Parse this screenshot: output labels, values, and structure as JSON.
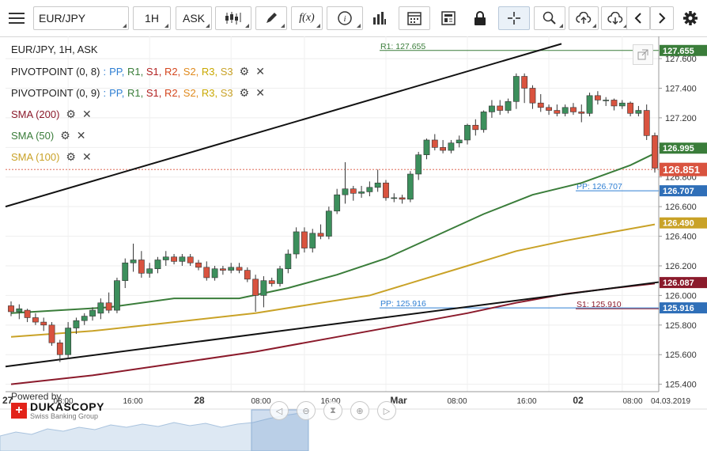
{
  "toolbar": {
    "instrument": "EUR/JPY",
    "period": "1H",
    "side": "ASK",
    "fx_label": "f(x)"
  },
  "legend": {
    "title": "EUR/JPY, 1H, ASK",
    "pivot1": {
      "name": "PIVOTPOINT (0, 8)",
      "items": [
        "PP",
        "R1",
        "S1",
        "R2",
        "S2",
        "R3",
        "S3"
      ]
    },
    "pivot2": {
      "name": "PIVOTPOINT (0, 9)",
      "items": [
        "PP",
        "R1",
        "S1",
        "R2",
        "S2",
        "R3",
        "S3"
      ]
    },
    "sma200": "SMA (200)",
    "sma50": "SMA (50)",
    "sma100": "SMA (100)"
  },
  "colors": {
    "up": "#3c8f5c",
    "down": "#d9533f",
    "sma200": "#8b1a2b",
    "sma50": "#3a7d3a",
    "sma100": "#c9a227",
    "pp": "#2f7fd3",
    "r1": "#3a7d3a",
    "s1": "#b22222",
    "r2": "#d4461e",
    "s2": "#e08a1e",
    "r3": "#c9a800",
    "s3": "#c9a227",
    "accent_blue": "#1f5fa8"
  },
  "icons": [
    "hamburger-icon",
    "instrument-dropdown",
    "period-dropdown",
    "side-dropdown",
    "candles-icon",
    "pencil-icon",
    "function-icon",
    "info-icon",
    "volume-bars-icon",
    "calendar-icon",
    "news-icon",
    "lock-icon",
    "crosshair-icon",
    "zoom-icon",
    "upload-cloud-icon",
    "download-cloud-icon",
    "chevron-left-icon",
    "chevron-right-icon",
    "settings-icon"
  ],
  "branding": {
    "powered_by": "Powered by",
    "name": "DUKASCOPY",
    "sub": "Swiss Banking Group"
  },
  "chart_data": {
    "type": "candlestick",
    "ylim": [
      125.35,
      127.75
    ],
    "y_ticks": [
      "127.600",
      "127.400",
      "127.200",
      "127.000",
      "126.800",
      "126.600",
      "126.400",
      "126.200",
      "126.000",
      "125.800",
      "125.600",
      "125.400"
    ],
    "x_ticks": [
      "27",
      "08:00",
      "16:00",
      "28",
      "08:00",
      "16:00",
      "Mar",
      "08:00",
      "16:00",
      "02",
      "08:00",
      "04.03.2019"
    ],
    "price_labels": [
      {
        "text": "127.655",
        "color": "#3a7d3a"
      },
      {
        "text": "126.995",
        "color": "#3a7d3a"
      },
      {
        "text": "126.851",
        "color": "#d9533f"
      },
      {
        "text": "126.707",
        "color": "#2f6fb8"
      },
      {
        "text": "126.490",
        "color": "#c9a227"
      },
      {
        "text": "126.087",
        "color": "#8b1a2b"
      },
      {
        "text": "125.916",
        "color": "#2f6fb8"
      }
    ],
    "levels": [
      {
        "name": "R1: 127.655",
        "value": 127.655
      },
      {
        "name": "PP: 126.707",
        "value": 126.707
      },
      {
        "name": "PP: 125.916",
        "value": 125.916
      },
      {
        "name": "S1: 125.910",
        "value": 125.91
      }
    ],
    "current_price": 126.851,
    "candles": [
      {
        "o": 125.93,
        "h": 125.96,
        "l": 125.86,
        "c": 125.89
      },
      {
        "o": 125.89,
        "h": 125.94,
        "l": 125.84,
        "c": 125.91
      },
      {
        "o": 125.9,
        "h": 125.91,
        "l": 125.82,
        "c": 125.85
      },
      {
        "o": 125.85,
        "h": 125.88,
        "l": 125.8,
        "c": 125.82
      },
      {
        "o": 125.82,
        "h": 125.85,
        "l": 125.76,
        "c": 125.8
      },
      {
        "o": 125.8,
        "h": 125.82,
        "l": 125.66,
        "c": 125.68
      },
      {
        "o": 125.68,
        "h": 125.7,
        "l": 125.55,
        "c": 125.6
      },
      {
        "o": 125.6,
        "h": 125.82,
        "l": 125.57,
        "c": 125.78
      },
      {
        "o": 125.78,
        "h": 125.85,
        "l": 125.74,
        "c": 125.83
      },
      {
        "o": 125.83,
        "h": 125.88,
        "l": 125.8,
        "c": 125.86
      },
      {
        "o": 125.86,
        "h": 125.92,
        "l": 125.83,
        "c": 125.9
      },
      {
        "o": 125.88,
        "h": 125.98,
        "l": 125.84,
        "c": 125.95
      },
      {
        "o": 125.95,
        "h": 126.02,
        "l": 125.88,
        "c": 125.9
      },
      {
        "o": 125.9,
        "h": 126.12,
        "l": 125.88,
        "c": 126.1
      },
      {
        "o": 126.1,
        "h": 126.25,
        "l": 126.05,
        "c": 126.22
      },
      {
        "o": 126.22,
        "h": 126.35,
        "l": 126.16,
        "c": 126.24
      },
      {
        "o": 126.24,
        "h": 126.3,
        "l": 126.12,
        "c": 126.15
      },
      {
        "o": 126.15,
        "h": 126.22,
        "l": 126.12,
        "c": 126.18
      },
      {
        "o": 126.18,
        "h": 126.26,
        "l": 126.15,
        "c": 126.24
      },
      {
        "o": 126.24,
        "h": 126.3,
        "l": 126.2,
        "c": 126.26
      },
      {
        "o": 126.26,
        "h": 126.28,
        "l": 126.21,
        "c": 126.23
      },
      {
        "o": 126.23,
        "h": 126.28,
        "l": 126.2,
        "c": 126.26
      },
      {
        "o": 126.26,
        "h": 126.28,
        "l": 126.2,
        "c": 126.22
      },
      {
        "o": 126.22,
        "h": 126.24,
        "l": 126.17,
        "c": 126.19
      },
      {
        "o": 126.19,
        "h": 126.23,
        "l": 126.1,
        "c": 126.12
      },
      {
        "o": 126.12,
        "h": 126.2,
        "l": 126.1,
        "c": 126.18
      },
      {
        "o": 126.18,
        "h": 126.2,
        "l": 126.14,
        "c": 126.17
      },
      {
        "o": 126.17,
        "h": 126.22,
        "l": 126.15,
        "c": 126.19
      },
      {
        "o": 126.19,
        "h": 126.22,
        "l": 126.15,
        "c": 126.17
      },
      {
        "o": 126.17,
        "h": 126.19,
        "l": 126.09,
        "c": 126.11
      },
      {
        "o": 126.11,
        "h": 126.14,
        "l": 125.89,
        "c": 126.0
      },
      {
        "o": 126.0,
        "h": 126.13,
        "l": 125.92,
        "c": 126.1
      },
      {
        "o": 126.1,
        "h": 126.12,
        "l": 126.06,
        "c": 126.08
      },
      {
        "o": 126.08,
        "h": 126.2,
        "l": 126.06,
        "c": 126.18
      },
      {
        "o": 126.18,
        "h": 126.31,
        "l": 126.15,
        "c": 126.28
      },
      {
        "o": 126.28,
        "h": 126.46,
        "l": 126.25,
        "c": 126.43
      },
      {
        "o": 126.43,
        "h": 126.46,
        "l": 126.29,
        "c": 126.32
      },
      {
        "o": 126.32,
        "h": 126.45,
        "l": 126.29,
        "c": 126.42
      },
      {
        "o": 126.42,
        "h": 126.48,
        "l": 126.38,
        "c": 126.4
      },
      {
        "o": 126.4,
        "h": 126.6,
        "l": 126.38,
        "c": 126.57
      },
      {
        "o": 126.57,
        "h": 126.72,
        "l": 126.55,
        "c": 126.68
      },
      {
        "o": 126.68,
        "h": 126.9,
        "l": 126.62,
        "c": 126.72
      },
      {
        "o": 126.72,
        "h": 126.74,
        "l": 126.64,
        "c": 126.69
      },
      {
        "o": 126.69,
        "h": 126.74,
        "l": 126.66,
        "c": 126.7
      },
      {
        "o": 126.7,
        "h": 126.77,
        "l": 126.67,
        "c": 126.73
      },
      {
        "o": 126.73,
        "h": 126.85,
        "l": 126.7,
        "c": 126.76
      },
      {
        "o": 126.76,
        "h": 126.78,
        "l": 126.64,
        "c": 126.66
      },
      {
        "o": 126.66,
        "h": 126.69,
        "l": 126.63,
        "c": 126.66
      },
      {
        "o": 126.66,
        "h": 126.68,
        "l": 126.62,
        "c": 126.65
      },
      {
        "o": 126.65,
        "h": 126.84,
        "l": 126.63,
        "c": 126.82
      },
      {
        "o": 126.82,
        "h": 126.97,
        "l": 126.78,
        "c": 126.95
      },
      {
        "o": 126.95,
        "h": 127.06,
        "l": 126.92,
        "c": 127.05
      },
      {
        "o": 127.05,
        "h": 127.09,
        "l": 126.98,
        "c": 127.0
      },
      {
        "o": 127.0,
        "h": 127.05,
        "l": 126.96,
        "c": 126.98
      },
      {
        "o": 126.98,
        "h": 127.05,
        "l": 126.96,
        "c": 127.03
      },
      {
        "o": 127.03,
        "h": 127.08,
        "l": 127.0,
        "c": 127.05
      },
      {
        "o": 127.05,
        "h": 127.16,
        "l": 127.02,
        "c": 127.15
      },
      {
        "o": 127.15,
        "h": 127.19,
        "l": 127.08,
        "c": 127.12
      },
      {
        "o": 127.12,
        "h": 127.25,
        "l": 127.1,
        "c": 127.24
      },
      {
        "o": 127.24,
        "h": 127.32,
        "l": 127.2,
        "c": 127.28
      },
      {
        "o": 127.28,
        "h": 127.32,
        "l": 127.22,
        "c": 127.25
      },
      {
        "o": 127.25,
        "h": 127.33,
        "l": 127.23,
        "c": 127.31
      },
      {
        "o": 127.31,
        "h": 127.5,
        "l": 127.26,
        "c": 127.48
      },
      {
        "o": 127.48,
        "h": 127.5,
        "l": 127.3,
        "c": 127.4
      },
      {
        "o": 127.4,
        "h": 127.42,
        "l": 127.26,
        "c": 127.3
      },
      {
        "o": 127.3,
        "h": 127.36,
        "l": 127.24,
        "c": 127.27
      },
      {
        "o": 127.27,
        "h": 127.29,
        "l": 127.22,
        "c": 127.25
      },
      {
        "o": 127.25,
        "h": 127.29,
        "l": 127.21,
        "c": 127.23
      },
      {
        "o": 127.23,
        "h": 127.29,
        "l": 127.21,
        "c": 127.27
      },
      {
        "o": 127.27,
        "h": 127.3,
        "l": 127.22,
        "c": 127.24
      },
      {
        "o": 127.24,
        "h": 127.29,
        "l": 127.17,
        "c": 127.23
      },
      {
        "o": 127.23,
        "h": 127.37,
        "l": 127.21,
        "c": 127.35
      },
      {
        "o": 127.35,
        "h": 127.38,
        "l": 127.29,
        "c": 127.32
      },
      {
        "o": 127.32,
        "h": 127.34,
        "l": 127.28,
        "c": 127.32
      },
      {
        "o": 127.32,
        "h": 127.33,
        "l": 127.25,
        "c": 127.28
      },
      {
        "o": 127.28,
        "h": 127.32,
        "l": 127.26,
        "c": 127.3
      },
      {
        "o": 127.3,
        "h": 127.31,
        "l": 127.21,
        "c": 127.23
      },
      {
        "o": 127.23,
        "h": 127.28,
        "l": 127.21,
        "c": 127.25
      },
      {
        "o": 127.25,
        "h": 127.29,
        "l": 127.05,
        "c": 127.08
      },
      {
        "o": 127.08,
        "h": 127.1,
        "l": 126.83,
        "c": 126.86
      }
    ],
    "sma50": [
      [
        0,
        125.88
      ],
      [
        12,
        125.92
      ],
      [
        20,
        125.98
      ],
      [
        28,
        125.98
      ],
      [
        34,
        126.05
      ],
      [
        40,
        126.14
      ],
      [
        46,
        126.25
      ],
      [
        52,
        126.4
      ],
      [
        58,
        126.55
      ],
      [
        64,
        126.68
      ],
      [
        70,
        126.76
      ],
      [
        76,
        126.88
      ],
      [
        79,
        126.96
      ]
    ],
    "sma100": [
      [
        0,
        125.72
      ],
      [
        10,
        125.76
      ],
      [
        20,
        125.82
      ],
      [
        30,
        125.88
      ],
      [
        38,
        125.95
      ],
      [
        44,
        126.0
      ],
      [
        50,
        126.1
      ],
      [
        56,
        126.2
      ],
      [
        62,
        126.3
      ],
      [
        68,
        126.37
      ],
      [
        74,
        126.43
      ],
      [
        79,
        126.48
      ]
    ],
    "sma200": [
      [
        0,
        125.4
      ],
      [
        10,
        125.46
      ],
      [
        20,
        125.54
      ],
      [
        30,
        125.62
      ],
      [
        40,
        125.72
      ],
      [
        48,
        125.8
      ],
      [
        56,
        125.88
      ],
      [
        62,
        125.95
      ],
      [
        68,
        126.01
      ],
      [
        74,
        126.05
      ],
      [
        79,
        126.08
      ]
    ],
    "trend_top": [
      [
        126.6,
        127.25
      ],
      [
        127.7,
        127.7
      ]
    ],
    "trend_bottom": [
      [
        125.52,
        125.52
      ],
      [
        126.09,
        126.09
      ]
    ]
  }
}
